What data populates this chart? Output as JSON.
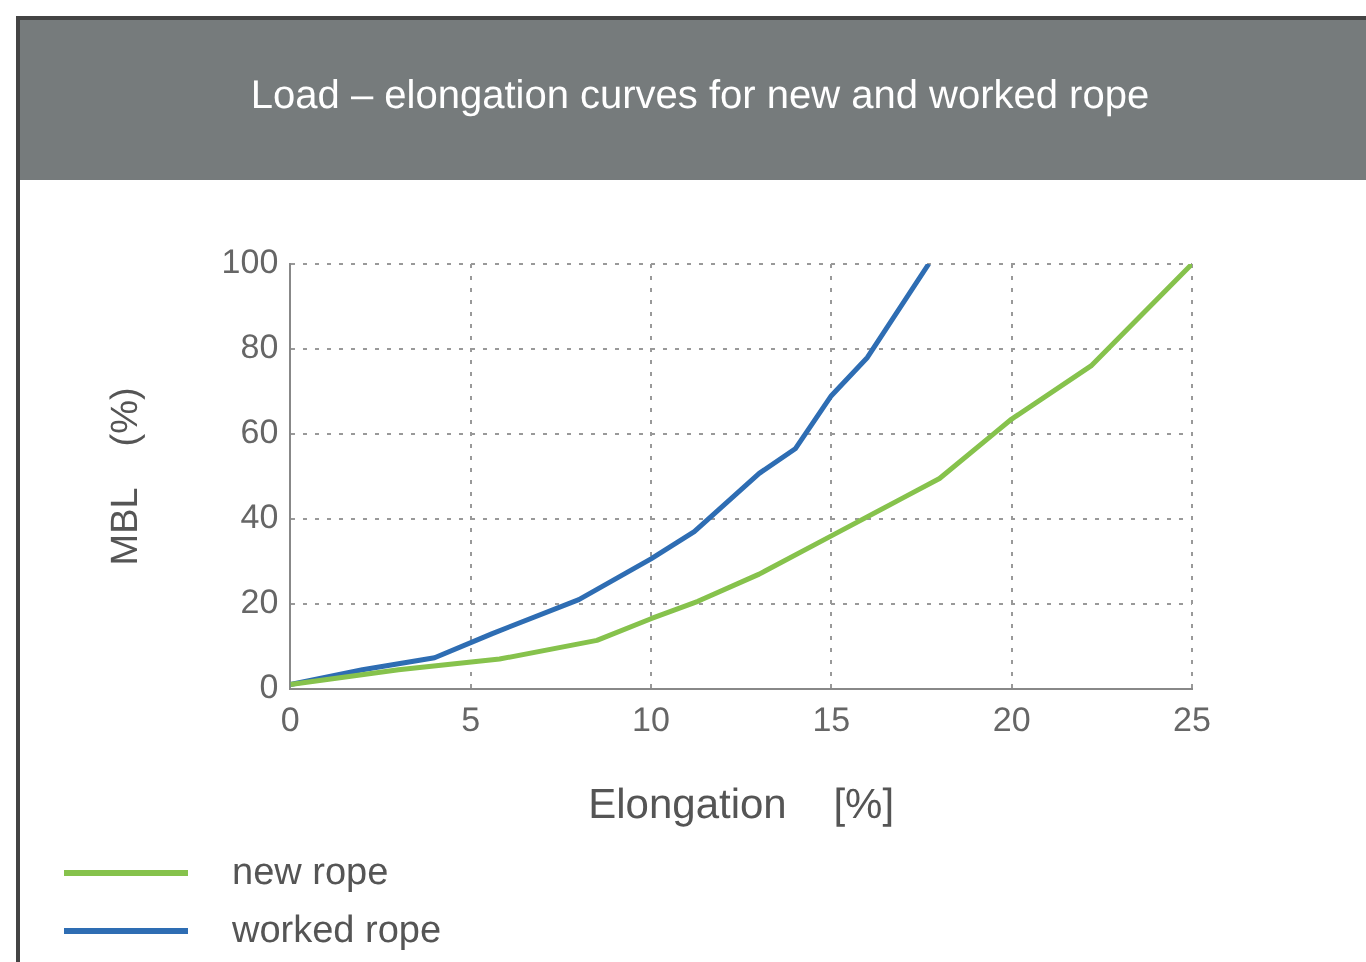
{
  "chart_data": {
    "type": "line",
    "title": "Load – elongation curves for new and worked rope",
    "xlabel": "Elongation    [%]",
    "ylabel": "MBL    (%)",
    "xlim": [
      0,
      25
    ],
    "xticks": [
      0,
      5,
      10,
      15,
      20,
      25
    ],
    "ylim": [
      0,
      100
    ],
    "yticks": [
      0,
      20,
      40,
      60,
      80,
      100
    ],
    "grid": true,
    "legend": "bottom left",
    "line_style": "solid",
    "marker": "none",
    "series": [
      {
        "name": "new rope",
        "color": "#86c24c",
        "x": [
          0,
          3,
          5.8,
          8.5,
          10,
          11.3,
          13,
          15,
          17,
          18,
          19.5,
          20,
          22.2,
          25
        ],
        "values": [
          1,
          4.5,
          7,
          11.4,
          16.5,
          20.6,
          27,
          36,
          45,
          49.5,
          60,
          63.5,
          76,
          100
        ]
      },
      {
        "name": "worked rope",
        "color": "#2e6db3",
        "x": [
          0,
          2,
          4,
          5.6,
          8,
          10,
          11.2,
          13,
          14,
          15,
          16,
          17.7
        ],
        "values": [
          1,
          4.5,
          7.3,
          13,
          21,
          30.6,
          37,
          50.7,
          56.5,
          69,
          78,
          100
        ]
      }
    ]
  }
}
